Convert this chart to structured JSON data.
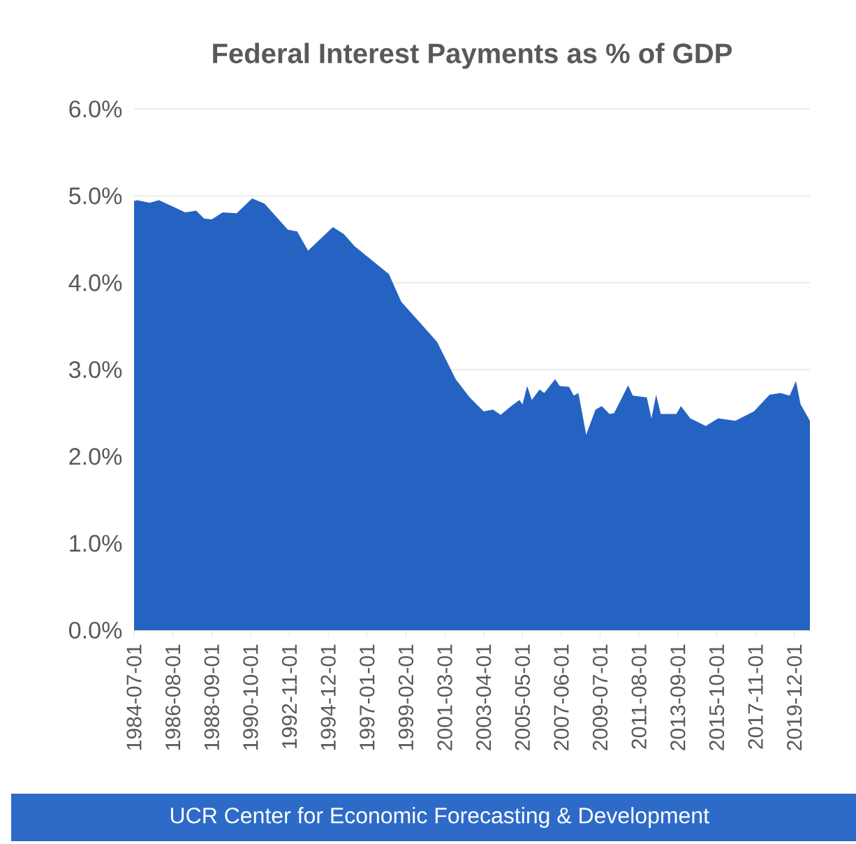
{
  "chart_data": {
    "type": "area",
    "title": "Federal Interest Payments as % of GDP",
    "x": [
      "1984-07",
      "1984-09",
      "1985-05",
      "1985-11",
      "1987-04",
      "1987-11",
      "1988-04",
      "1988-09",
      "1989-04",
      "1990-01",
      "1990-11",
      "1991-07",
      "1992-10",
      "1993-04",
      "1993-11",
      "1995-03",
      "1995-10",
      "1996-05",
      "1998-03",
      "1998-11",
      "1999-10",
      "2000-10",
      "2001-10",
      "2002-07",
      "2003-04",
      "2003-10",
      "2004-03",
      "2004-09",
      "2005-03",
      "2005-05",
      "2005-08",
      "2005-11",
      "2006-04",
      "2006-07",
      "2007-02",
      "2007-05",
      "2007-11",
      "2008-02",
      "2008-05",
      "2008-10",
      "2009-04",
      "2009-08",
      "2010-01",
      "2010-04",
      "2011-01",
      "2011-04",
      "2012-01",
      "2012-04",
      "2012-07",
      "2012-10",
      "2013-02",
      "2013-08",
      "2013-11",
      "2014-05",
      "2015-03",
      "2015-11",
      "2016-10",
      "2017-10",
      "2018-08",
      "2019-03",
      "2019-09",
      "2020-01",
      "2020-04",
      "2020-10"
    ],
    "values": [
      4.94,
      4.95,
      4.92,
      4.95,
      4.81,
      4.83,
      4.74,
      4.73,
      4.81,
      4.8,
      4.97,
      4.91,
      4.61,
      4.59,
      4.37,
      4.64,
      4.56,
      4.42,
      4.1,
      3.78,
      3.56,
      3.32,
      2.89,
      2.68,
      2.52,
      2.54,
      2.48,
      2.57,
      2.65,
      2.6,
      2.81,
      2.65,
      2.77,
      2.73,
      2.89,
      2.81,
      2.8,
      2.7,
      2.73,
      2.25,
      2.54,
      2.58,
      2.49,
      2.5,
      2.82,
      2.7,
      2.68,
      2.44,
      2.71,
      2.49,
      2.49,
      2.49,
      2.58,
      2.44,
      2.35,
      2.44,
      2.41,
      2.52,
      2.71,
      2.73,
      2.7,
      2.87,
      2.6,
      2.41
    ],
    "color": "#2563c2",
    "xlim": [
      "1984-07-01",
      "2020-10-01"
    ],
    "xticks": [
      "1984-07-01",
      "1986-08-01",
      "1988-09-01",
      "1990-10-01",
      "1992-11-01",
      "1994-12-01",
      "1997-01-01",
      "1999-02-01",
      "2001-03-01",
      "2003-04-01",
      "2005-05-01",
      "2007-06-01",
      "2009-07-01",
      "2011-08-01",
      "2013-09-01",
      "2015-10-01",
      "2017-11-01",
      "2019-12-01"
    ],
    "ylim": [
      0,
      6
    ],
    "yticks": [
      {
        "value": 0,
        "label": "0.0%"
      },
      {
        "value": 1,
        "label": "1.0%"
      },
      {
        "value": 2,
        "label": "2.0%"
      },
      {
        "value": 3,
        "label": "3.0%"
      },
      {
        "value": 4,
        "label": "4.0%"
      },
      {
        "value": 5,
        "label": "5.0%"
      },
      {
        "value": 6,
        "label": "6.0%"
      }
    ],
    "grid": "y",
    "annotations": [
      "UCR Center for Economic Forecasting & Development"
    ]
  }
}
